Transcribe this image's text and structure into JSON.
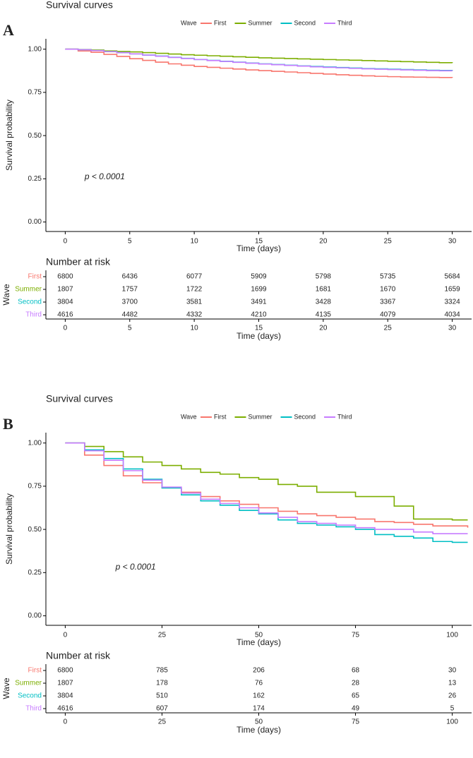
{
  "chart_data": [
    {
      "panel": "A",
      "type": "step",
      "title": "Survival curves",
      "legend_title": "Wave",
      "x_label": "Time (days)",
      "y_label": "Survival probability",
      "annotation": "p < 0.0001",
      "xlim": [
        -1.5,
        31.5
      ],
      "ylim": [
        -0.055,
        1.06
      ],
      "xticks": [
        0,
        5,
        10,
        15,
        20,
        25,
        30
      ],
      "yticks": [
        {
          "value": 0,
          "label": "0.00"
        },
        {
          "value": 0.25,
          "label": "0.25"
        },
        {
          "value": 0.5,
          "label": "0.50"
        },
        {
          "value": 0.75,
          "label": "0.75"
        },
        {
          "value": 1,
          "label": "1.00"
        }
      ],
      "x": [
        0,
        1,
        2,
        3,
        4,
        5,
        6,
        7,
        8,
        9,
        10,
        11,
        12,
        13,
        14,
        15,
        16,
        17,
        18,
        19,
        20,
        21,
        22,
        23,
        24,
        25,
        26,
        27,
        28,
        29,
        30
      ],
      "series": [
        {
          "name": "First",
          "color": "#F8766D",
          "values": [
            1,
            0.99,
            0.982,
            0.97,
            0.958,
            0.945,
            0.935,
            0.925,
            0.915,
            0.907,
            0.9,
            0.895,
            0.89,
            0.885,
            0.88,
            0.876,
            0.872,
            0.868,
            0.864,
            0.86,
            0.856,
            0.852,
            0.849,
            0.846,
            0.843,
            0.841,
            0.839,
            0.838,
            0.837,
            0.836,
            0.835
          ]
        },
        {
          "name": "Summer",
          "color": "#7CAE00",
          "values": [
            1,
            0.998,
            0.995,
            0.99,
            0.987,
            0.984,
            0.98,
            0.976,
            0.972,
            0.968,
            0.965,
            0.962,
            0.959,
            0.956,
            0.953,
            0.95,
            0.948,
            0.946,
            0.944,
            0.942,
            0.94,
            0.938,
            0.936,
            0.934,
            0.932,
            0.93,
            0.928,
            0.926,
            0.924,
            0.922,
            0.92
          ]
        },
        {
          "name": "Second",
          "color": "#00BFC4",
          "values": [
            1,
            0.997,
            0.992,
            0.986,
            0.98,
            0.973,
            0.966,
            0.96,
            0.953,
            0.947,
            0.94,
            0.935,
            0.93,
            0.925,
            0.92,
            0.915,
            0.911,
            0.907,
            0.903,
            0.9,
            0.897,
            0.894,
            0.891,
            0.888,
            0.886,
            0.884,
            0.882,
            0.88,
            0.878,
            0.877,
            0.876
          ]
        },
        {
          "name": "Third",
          "color": "#C77CFF",
          "values": [
            1,
            0.997,
            0.992,
            0.986,
            0.98,
            0.973,
            0.966,
            0.959,
            0.952,
            0.946,
            0.94,
            0.934,
            0.929,
            0.924,
            0.919,
            0.914,
            0.91,
            0.906,
            0.902,
            0.898,
            0.895,
            0.892,
            0.889,
            0.886,
            0.884,
            0.882,
            0.88,
            0.878,
            0.876,
            0.875,
            0.874
          ]
        }
      ],
      "risk_table": {
        "title": "Number at risk",
        "y_label": "Wave",
        "x_label": "Time (days)",
        "x": [
          0,
          5,
          10,
          15,
          20,
          25,
          30
        ],
        "rows": [
          [
            6800,
            6436,
            6077,
            5909,
            5798,
            5735,
            5684
          ],
          [
            1807,
            1757,
            1722,
            1699,
            1681,
            1670,
            1659
          ],
          [
            3804,
            3700,
            3581,
            3491,
            3428,
            3367,
            3324
          ],
          [
            4616,
            4482,
            4332,
            4210,
            4135,
            4079,
            4034
          ]
        ]
      }
    },
    {
      "panel": "B",
      "type": "step",
      "title": "Survival curves",
      "legend_title": "Wave",
      "x_label": "Time (days)",
      "y_label": "Survival probability",
      "annotation": "p < 0.0001",
      "xlim": [
        -5,
        105
      ],
      "ylim": [
        -0.055,
        1.06
      ],
      "xticks": [
        0,
        25,
        50,
        75,
        100
      ],
      "yticks": [
        {
          "value": 0,
          "label": "0.00"
        },
        {
          "value": 0.25,
          "label": "0.25"
        },
        {
          "value": 0.5,
          "label": "0.50"
        },
        {
          "value": 0.75,
          "label": "0.75"
        },
        {
          "value": 1,
          "label": "1.00"
        }
      ],
      "x": [
        0,
        5,
        10,
        15,
        20,
        25,
        30,
        35,
        40,
        45,
        50,
        55,
        60,
        65,
        70,
        75,
        80,
        85,
        90,
        95,
        100,
        104
      ],
      "series": [
        {
          "name": "First",
          "color": "#F8766D",
          "values": [
            1,
            0.93,
            0.87,
            0.81,
            0.77,
            0.74,
            0.715,
            0.69,
            0.665,
            0.645,
            0.625,
            0.605,
            0.59,
            0.58,
            0.57,
            0.56,
            0.545,
            0.54,
            0.53,
            0.52,
            0.52,
            0.51
          ]
        },
        {
          "name": "Summer",
          "color": "#7CAE00",
          "values": [
            1,
            0.98,
            0.95,
            0.92,
            0.89,
            0.87,
            0.85,
            0.83,
            0.82,
            0.8,
            0.79,
            0.76,
            0.75,
            0.715,
            0.715,
            0.69,
            0.69,
            0.635,
            0.56,
            0.56,
            0.555,
            0.555
          ]
        },
        {
          "name": "Second",
          "color": "#00BFC4",
          "values": [
            1,
            0.96,
            0.91,
            0.85,
            0.79,
            0.74,
            0.7,
            0.665,
            0.64,
            0.61,
            0.59,
            0.555,
            0.535,
            0.525,
            0.515,
            0.5,
            0.47,
            0.46,
            0.45,
            0.43,
            0.425,
            0.425
          ]
        },
        {
          "name": "Third",
          "color": "#C77CFF",
          "values": [
            1,
            0.955,
            0.9,
            0.84,
            0.785,
            0.745,
            0.71,
            0.675,
            0.65,
            0.625,
            0.595,
            0.57,
            0.545,
            0.535,
            0.525,
            0.51,
            0.5,
            0.5,
            0.485,
            0.475,
            0.475,
            0.475
          ]
        }
      ],
      "risk_table": {
        "title": "Number at risk",
        "y_label": "Wave",
        "x_label": "Time (days)",
        "x": [
          0,
          25,
          50,
          75,
          100
        ],
        "rows": [
          [
            6800,
            785,
            206,
            68,
            30
          ],
          [
            1807,
            178,
            76,
            28,
            13
          ],
          [
            3804,
            510,
            162,
            65,
            26
          ],
          [
            4616,
            607,
            174,
            49,
            5
          ]
        ]
      }
    }
  ]
}
